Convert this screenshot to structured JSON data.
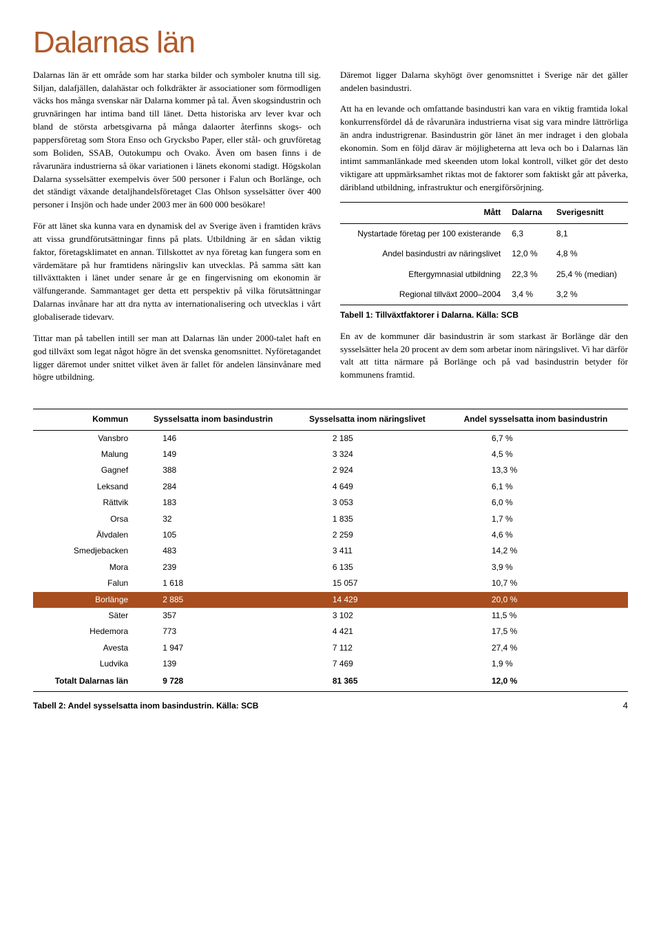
{
  "title": "Dalarnas län",
  "left_col": {
    "p1": "Dalarnas län är ett område som har starka bilder och symboler knutna till sig. Siljan, dalafjällen, dalahästar och folkdräkter är associationer som förmodligen väcks hos många svenskar när Dalarna kommer på tal. Även skogsindustrin och gruvnäringen har intima band till länet. Detta historiska arv lever kvar och bland de största arbetsgivarna på många dalaorter återfinns skogs- och pappersföretag som Stora Enso och Grycksbo Paper, eller stål- och gruvföretag som Boliden, SSAB, Outokumpu och Ovako. Även om basen finns i de råvarunära industrierna så ökar variationen i länets ekonomi stadigt. Högskolan Dalarna sysselsätter exempelvis över 500 personer i Falun och Borlänge, och det ständigt växande detaljhandelsföretaget Clas Ohlson sysselsätter över 400 personer i Insjön och hade under 2003 mer än 600 000 besökare!",
    "p2": "För att länet ska kunna vara en dynamisk del av Sverige även i framtiden krävs att vissa grundförutsättningar finns på plats. Utbildning är en sådan viktig faktor, företagsklimatet en annan. Tillskottet av nya företag kan fungera som en värdemätare på hur framtidens näringsliv kan utvecklas. På samma sätt kan tillväxttakten i länet under senare år ge en fingervisning om ekonomin är välfungerande. Sammantaget ger detta ett perspektiv på vilka förutsättningar Dalarnas invånare har att dra nytta av internationalisering och utvecklas i vårt globaliserade tidevarv.",
    "p3": "Tittar man på tabellen intill ser man att Dalarnas län under 2000-talet haft en god tillväxt som legat något högre än det svenska genomsnittet. Nyföretagandet ligger däremot under snittet vilket även är fallet för andelen länsinvånare med högre utbildning."
  },
  "right_col": {
    "p1": "Däremot ligger Dalarna skyhögt över genomsnittet i Sverige när det gäller andelen basindustri.",
    "p2": "Att ha en levande och omfattande basindustri kan vara en viktig framtida lokal konkurrensfördel då de råvarunära industrierna visat sig vara mindre lättrörliga än andra industrigrenar. Basindustrin gör länet än mer indraget i den globala ekonomin. Som en följd därav är möjligheterna att leva och bo i Dalarnas län intimt sammanlänkade med skeenden utom lokal kontroll, vilket gör det desto viktigare att uppmärksamhet riktas mot de faktorer som faktiskt går att påverka, däribland utbildning, infrastruktur och energiförsörjning.",
    "p3": "En av de kommuner där basindustrin är som starkast är Borlänge där den sysselsätter hela 20 procent av dem som arbetar inom näringslivet. Vi har därför valt att titta närmare på Borlänge och på vad basindustrin betyder för kommunens framtid."
  },
  "table1": {
    "headers": [
      "Mått",
      "Dalarna",
      "Sverigesnitt"
    ],
    "rows": [
      {
        "label": "Nystartade företag per 100 existerande",
        "dalarna": "6,3",
        "sverige": "8,1"
      },
      {
        "label": "Andel basindustri av näringslivet",
        "dalarna": "12,0 %",
        "sverige": "4,8 %"
      },
      {
        "label": "Eftergymnasial utbildning",
        "dalarna": "22,3 %",
        "sverige": "25,4 % (median)"
      },
      {
        "label": "Regional tillväxt 2000–2004",
        "dalarna": "3,4 %",
        "sverige": "3,2 %"
      }
    ],
    "caption": "Tabell 1: Tillväxtfaktorer i Dalarna. Källa: SCB"
  },
  "table2": {
    "headers": [
      "Kommun",
      "Sysselsatta inom basindustrin",
      "Sysselsatta inom näringslivet",
      "Andel sysselsatta inom basindustrin"
    ],
    "rows": [
      {
        "kommun": "Vansbro",
        "bas": "146",
        "nar": "2 185",
        "andel": "6,7 %",
        "hl": false
      },
      {
        "kommun": "Malung",
        "bas": "149",
        "nar": "3 324",
        "andel": "4,5 %",
        "hl": false
      },
      {
        "kommun": "Gagnef",
        "bas": "388",
        "nar": "2 924",
        "andel": "13,3 %",
        "hl": false
      },
      {
        "kommun": "Leksand",
        "bas": "284",
        "nar": "4 649",
        "andel": "6,1 %",
        "hl": false
      },
      {
        "kommun": "Rättvik",
        "bas": "183",
        "nar": "3 053",
        "andel": "6,0 %",
        "hl": false
      },
      {
        "kommun": "Orsa",
        "bas": "32",
        "nar": "1 835",
        "andel": "1,7 %",
        "hl": false
      },
      {
        "kommun": "Älvdalen",
        "bas": "105",
        "nar": "2 259",
        "andel": "4,6 %",
        "hl": false
      },
      {
        "kommun": "Smedjebacken",
        "bas": "483",
        "nar": "3 411",
        "andel": "14,2 %",
        "hl": false
      },
      {
        "kommun": "Mora",
        "bas": "239",
        "nar": "6 135",
        "andel": "3,9 %",
        "hl": false
      },
      {
        "kommun": "Falun",
        "bas": "1 618",
        "nar": "15 057",
        "andel": "10,7 %",
        "hl": false
      },
      {
        "kommun": "Borlänge",
        "bas": "2 885",
        "nar": "14 429",
        "andel": "20,0 %",
        "hl": true
      },
      {
        "kommun": "Säter",
        "bas": "357",
        "nar": "3 102",
        "andel": "11,5 %",
        "hl": false
      },
      {
        "kommun": "Hedemora",
        "bas": "773",
        "nar": "4 421",
        "andel": "17,5 %",
        "hl": false
      },
      {
        "kommun": "Avesta",
        "bas": "1 947",
        "nar": "7 112",
        "andel": "27,4 %",
        "hl": false
      },
      {
        "kommun": "Ludvika",
        "bas": "139",
        "nar": "7 469",
        "andel": "1,9 %",
        "hl": false
      }
    ],
    "total": {
      "kommun": "Totalt Dalarnas län",
      "bas": "9 728",
      "nar": "81 365",
      "andel": "12,0 %"
    },
    "caption": "Tabell 2: Andel sysselsatta inom basindustrin. Källa: SCB"
  },
  "page_number": "4",
  "colors": {
    "title": "#b05a2a",
    "highlight_bg": "#a84e1f",
    "highlight_fg": "#ffffff"
  }
}
